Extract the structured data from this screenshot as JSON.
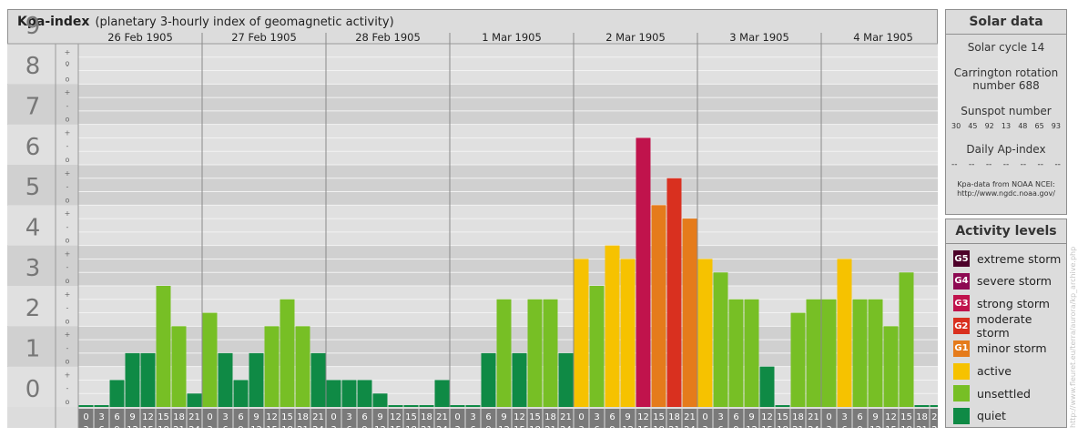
{
  "header": {
    "title": "Kpa-index",
    "subtitle": "(planetary 3-hourly index of geomagnetic activity)"
  },
  "colors": {
    "quiet": "#0f8a45",
    "unsettled": "#77bf25",
    "active": "#f6c200",
    "G1": "#e57b1b",
    "G2": "#d9301f",
    "G3": "#c0134c",
    "G4": "#8e0a53",
    "G5": "#4d0029"
  },
  "chart_data": {
    "type": "bar",
    "title": "Kpa-index",
    "subtitle": "(planetary 3-hourly index of geomagnetic activity)",
    "ylim": [
      0,
      9
    ],
    "y_ticks": [
      "0",
      "1",
      "2",
      "3",
      "4",
      "5",
      "6",
      "7",
      "8",
      "9"
    ],
    "minor_tick_marks": [
      "o",
      "-",
      "+"
    ],
    "days": [
      "26 Feb 1905",
      "27 Feb 1905",
      "28 Feb 1905",
      "1 Mar 1905",
      "2 Mar 1905",
      "3 Mar 1905",
      "4 Mar 1905"
    ],
    "interval_start": [
      "0",
      "3",
      "6",
      "9",
      "12",
      "15",
      "18",
      "21"
    ],
    "interval_end": [
      "3",
      "6",
      "9",
      "12",
      "15",
      "18",
      "21",
      "24"
    ],
    "values": [
      [
        0,
        0,
        0.667,
        1.333,
        1.333,
        3,
        2,
        0.333
      ],
      [
        2.333,
        1.333,
        0.667,
        1.333,
        2,
        2.667,
        2,
        1.333
      ],
      [
        0.667,
        0.667,
        0.667,
        0.333,
        0,
        0,
        0,
        0.667
      ],
      [
        0,
        0,
        1.333,
        2.667,
        1.333,
        2.667,
        2.667,
        1.333
      ],
      [
        3.667,
        3,
        4,
        3.667,
        6.667,
        5,
        5.667,
        4.667
      ],
      [
        3.667,
        3.333,
        2.667,
        2.667,
        1,
        0,
        2.333,
        2.667
      ],
      [
        2.667,
        3.667,
        2.667,
        2.667,
        2,
        3.333,
        0,
        0
      ]
    ],
    "categories_per_day": 8,
    "grid": true,
    "legend": "right"
  },
  "solar": {
    "title": "Solar data",
    "cycle": "Solar cycle 14",
    "carrington_line1": "Carrington rotation",
    "carrington_line2": "number 688",
    "sunspot_label": "Sunspot number",
    "sunspots": [
      "30",
      "45",
      "92",
      "13",
      "48",
      "65",
      "93"
    ],
    "ap_label": "Daily Ap-index",
    "ap_values": [
      "--",
      "--",
      "--",
      "--",
      "--",
      "--",
      "--"
    ],
    "source_line1": "Kpa-data from NOAA NCEI:",
    "source_line2": "http://www.ngdc.noaa.gov/"
  },
  "levels": {
    "title": "Activity levels",
    "items": [
      {
        "badge": "G5",
        "label": "extreme storm",
        "color": "#4d0029"
      },
      {
        "badge": "G4",
        "label": "severe storm",
        "color": "#8e0a53"
      },
      {
        "badge": "G3",
        "label": "strong storm",
        "color": "#c0134c"
      },
      {
        "badge": "G2",
        "label": "moderate storm",
        "color": "#d9301f"
      },
      {
        "badge": "G1",
        "label": "minor storm",
        "color": "#e57b1b"
      },
      {
        "badge": "",
        "label": "active",
        "color": "#f6c200"
      },
      {
        "badge": "",
        "label": "unsettled",
        "color": "#77bf25"
      },
      {
        "badge": "",
        "label": "quiet",
        "color": "#0f8a45"
      }
    ]
  },
  "credit": "http://www.fleuret.eu/terra/aurora/kp_archive.php"
}
